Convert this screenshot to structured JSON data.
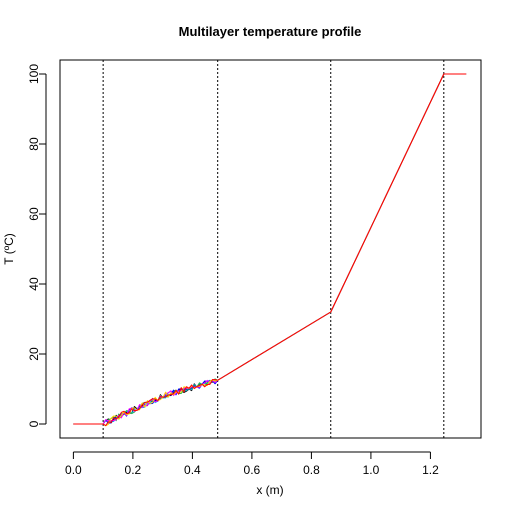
{
  "chart_data": {
    "type": "line",
    "title": "Multilayer temperature profile",
    "xlabel": "x (m)",
    "ylabel": "T (ºC)",
    "xlim": [
      -0.045,
      1.37
    ],
    "ylim": [
      -4,
      104
    ],
    "x_ticks": [
      0.0,
      0.2,
      0.4,
      0.6,
      0.8,
      1.0,
      1.2
    ],
    "x_tick_labels": [
      "0.0",
      "0.2",
      "0.4",
      "0.6",
      "0.8",
      "1.0",
      "1.2"
    ],
    "y_ticks": [
      0,
      20,
      40,
      60,
      80,
      100
    ],
    "y_tick_labels": [
      "0",
      "20",
      "40",
      "60",
      "80",
      "100"
    ],
    "grid": false,
    "legend": "none",
    "layer_boundaries": [
      0.1,
      0.485,
      0.865,
      1.245
    ],
    "layer_boundary_style": "dotted",
    "noise_region": [
      0.1,
      0.485
    ],
    "series": [
      {
        "color": "#000000",
        "points": [
          [
            0.0,
            0.0
          ],
          [
            0.1,
            0.0
          ],
          [
            0.3,
            8.0
          ],
          [
            0.485,
            12.5
          ],
          [
            0.865,
            32.0
          ],
          [
            1.245,
            100.0
          ],
          [
            1.32,
            100.0
          ]
        ]
      },
      {
        "color": "#00B0F0",
        "points": [
          [
            0.0,
            0.0
          ],
          [
            0.1,
            0.0
          ],
          [
            0.3,
            8.0
          ],
          [
            0.485,
            12.5
          ],
          [
            0.865,
            32.0
          ],
          [
            1.245,
            100.0
          ],
          [
            1.32,
            100.0
          ]
        ]
      },
      {
        "color": "#22B14C",
        "points": [
          [
            0.0,
            0.0
          ],
          [
            0.1,
            0.0
          ],
          [
            0.3,
            8.0
          ],
          [
            0.485,
            12.5
          ],
          [
            0.865,
            32.0
          ],
          [
            1.245,
            100.0
          ],
          [
            1.32,
            100.0
          ]
        ]
      },
      {
        "color": "#0000FF",
        "points": [
          [
            0.0,
            0.0
          ],
          [
            0.1,
            0.0
          ],
          [
            0.3,
            8.0
          ],
          [
            0.485,
            12.5
          ],
          [
            0.865,
            32.0
          ],
          [
            1.245,
            100.0
          ],
          [
            1.32,
            100.0
          ]
        ]
      },
      {
        "color": "#FF00FF",
        "points": [
          [
            0.0,
            0.0
          ],
          [
            0.1,
            0.0
          ],
          [
            0.3,
            8.0
          ],
          [
            0.485,
            12.5
          ],
          [
            0.865,
            32.0
          ],
          [
            1.245,
            100.0
          ],
          [
            1.32,
            100.0
          ]
        ]
      },
      {
        "color": "#FFD700",
        "points": [
          [
            0.0,
            0.0
          ],
          [
            0.1,
            0.0
          ],
          [
            0.3,
            8.0
          ],
          [
            0.485,
            12.5
          ],
          [
            0.865,
            32.0
          ],
          [
            1.245,
            100.0
          ],
          [
            1.32,
            100.0
          ]
        ]
      },
      {
        "color": "#FF0000",
        "points": [
          [
            0.0,
            0.0
          ],
          [
            0.1,
            0.0
          ],
          [
            0.3,
            8.0
          ],
          [
            0.485,
            12.5
          ],
          [
            0.865,
            32.0
          ],
          [
            1.245,
            100.0
          ],
          [
            1.32,
            100.0
          ]
        ]
      }
    ]
  }
}
